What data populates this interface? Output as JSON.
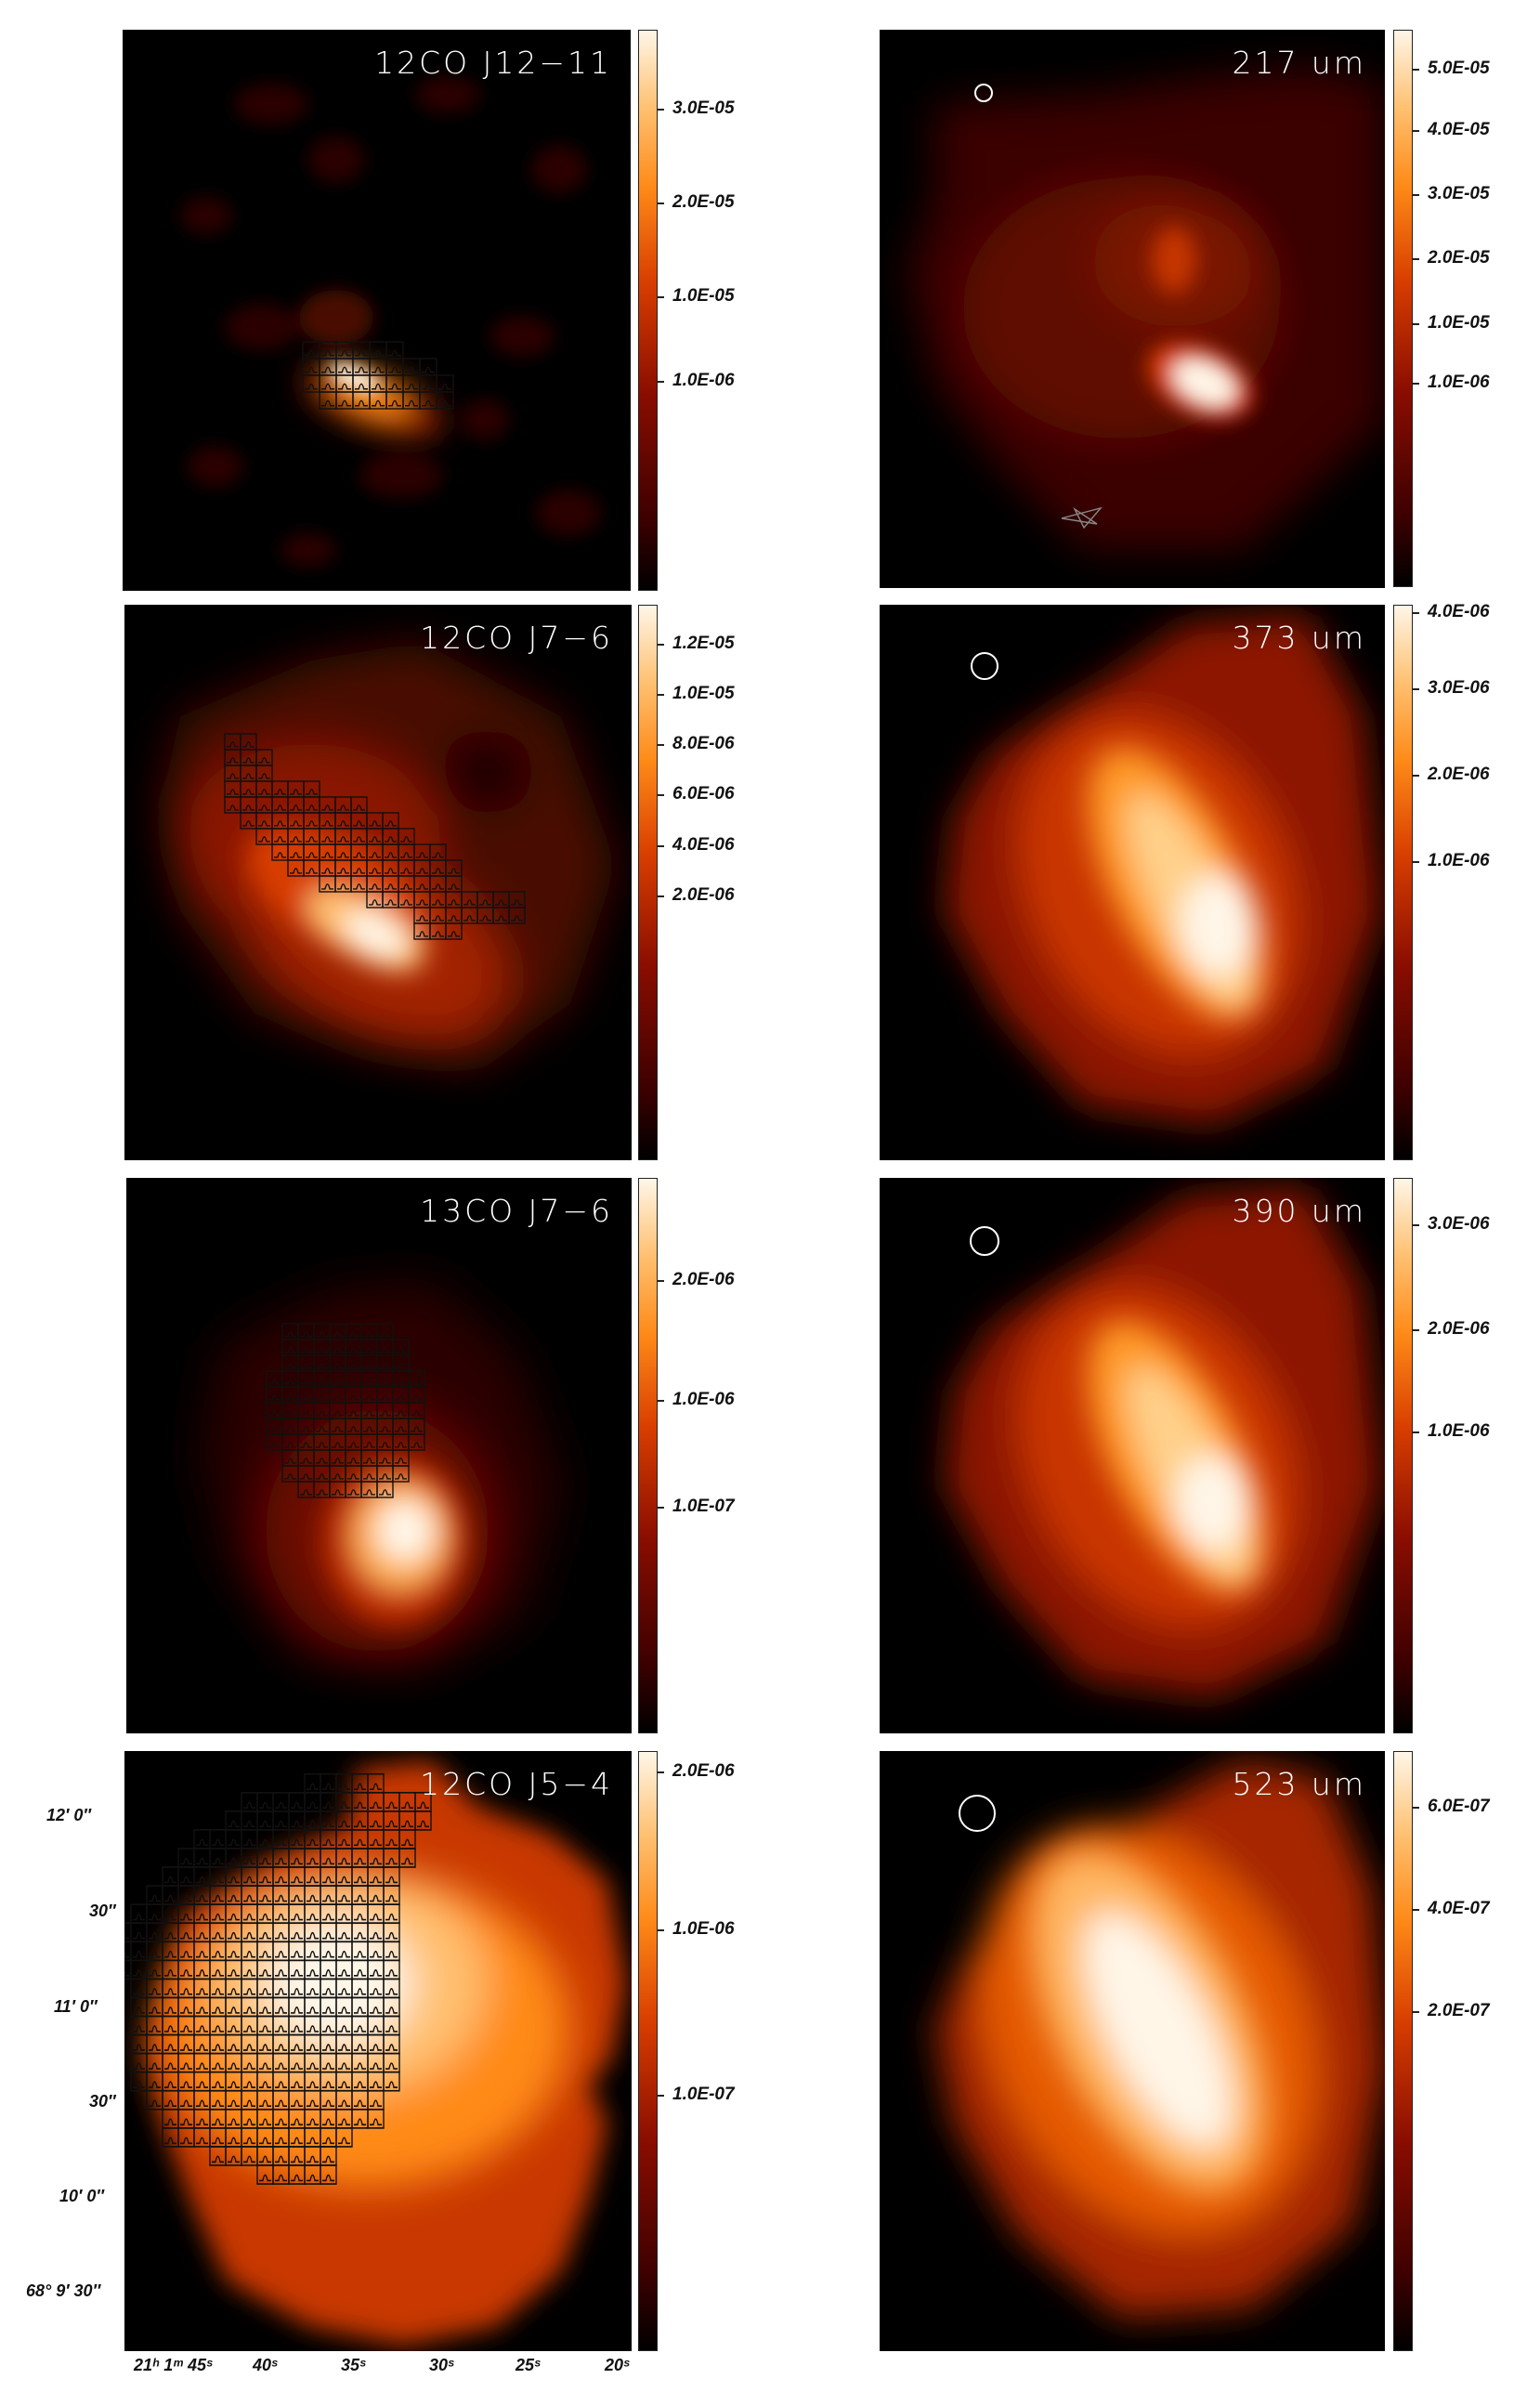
{
  "panels": [
    {
      "label": "12CO J12−11",
      "cbar_ticks": [
        "3.0E-05",
        "2.0E-05",
        "1.0E-05",
        "1.0E-06"
      ]
    },
    {
      "label": "217 um",
      "cbar_ticks": [
        "5.0E-05",
        "4.0E-05",
        "3.0E-05",
        "2.0E-05",
        "1.0E-05",
        "1.0E-06"
      ]
    },
    {
      "label": "12CO J7−6",
      "cbar_ticks": [
        "1.2E-05",
        "1.0E-05",
        "8.0E-06",
        "6.0E-06",
        "4.0E-06",
        "2.0E-06"
      ]
    },
    {
      "label": "373 um",
      "cbar_ticks": [
        "4.0E-06",
        "3.0E-06",
        "2.0E-06",
        "1.0E-06"
      ]
    },
    {
      "label": "13CO J7−6",
      "cbar_ticks": [
        "2.0E-06",
        "1.0E-06",
        "1.0E-07"
      ]
    },
    {
      "label": "390 um",
      "cbar_ticks": [
        "3.0E-06",
        "2.0E-06",
        "1.0E-06"
      ]
    },
    {
      "label": "12CO J5−4",
      "cbar_ticks": [
        "2.0E-06",
        "1.0E-06",
        "1.0E-07"
      ]
    },
    {
      "label": "523 um",
      "cbar_ticks": [
        "6.0E-07",
        "4.0E-07",
        "2.0E-07"
      ]
    }
  ],
  "axes": {
    "dec_labels": [
      "12′ 0″",
      "30″",
      "11′ 0″",
      "30″",
      "10′ 0″",
      "68° 9′ 30″"
    ],
    "ra_labels": [
      "21ʰ 1ᵐ 45ˢ",
      "40ˢ",
      "35ˢ",
      "30ˢ",
      "25ˢ",
      "20ˢ"
    ]
  },
  "colormap": [
    "#000000",
    "#3a0000",
    "#8a0d00",
    "#d83e00",
    "#ff8a18",
    "#ffc070",
    "#fff6e8"
  ]
}
